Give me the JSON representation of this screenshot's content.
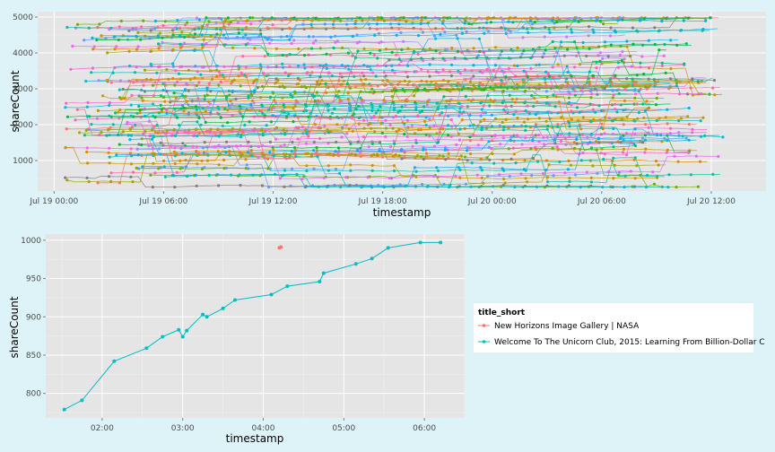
{
  "chart_data": [
    {
      "type": "line",
      "title": "",
      "xlabel": "timestamp",
      "ylabel": "shareCount",
      "x_ticks": [
        "Jul 19 00:00",
        "Jul 19 06:00",
        "Jul 19 12:00",
        "Jul 19 18:00",
        "Jul 20 00:00",
        "Jul 20 06:00",
        "Jul 20 12:00"
      ],
      "y_ticks": [
        "1000",
        "2000",
        "3000",
        "4000",
        "5000"
      ],
      "x_range_hours": [
        -0.9,
        39.0
      ],
      "ylim": [
        150,
        5150
      ],
      "grid": true,
      "series_count": 90,
      "note_series": "many overlapping article series; individual values illegible",
      "palette": [
        "#f8766d",
        "#e58700",
        "#c99800",
        "#a3a500",
        "#6bb100",
        "#00ba38",
        "#00bf7d",
        "#00c0af",
        "#00bcd8",
        "#00b0f6",
        "#619cff",
        "#b983ff",
        "#e76bf3",
        "#fd61d1",
        "#ff67a4",
        "#7f7f7f"
      ]
    },
    {
      "type": "line",
      "title": "",
      "xlabel": "timestamp",
      "ylabel": "shareCount",
      "x_ticks": [
        "02:00",
        "03:00",
        "04:00",
        "05:00",
        "06:00"
      ],
      "y_ticks": [
        "800",
        "850",
        "900",
        "950",
        "1000"
      ],
      "x_range_hours": [
        1.3,
        6.5
      ],
      "ylim": [
        768,
        1008
      ],
      "grid": true,
      "legend": {
        "title": "title_short",
        "placement": "right",
        "entries": [
          {
            "label": "New Horizons Image Gallery | NASA",
            "color": "#f8766d"
          },
          {
            "label": "Welcome To The Unicorn Club, 2015: Learning From Billion-Dollar C",
            "color": "#00bfc4"
          }
        ]
      },
      "series": [
        {
          "name": "New Horizons Image Gallery | NASA",
          "color": "#f8766d",
          "x": [
            4.2,
            4.22
          ],
          "values": [
            990,
            991
          ]
        },
        {
          "name": "Welcome To The Unicorn Club, 2015: Learning From Billion-Dollar C",
          "color": "#00bfc4",
          "x": [
            1.53,
            1.75,
            2.15,
            2.55,
            2.75,
            2.95,
            3.0,
            3.05,
            3.25,
            3.3,
            3.5,
            3.65,
            4.1,
            4.3,
            4.7,
            4.75,
            5.15,
            5.35,
            5.55,
            5.95,
            6.2
          ],
          "values": [
            779,
            791,
            842,
            859,
            874,
            883,
            874,
            882,
            903,
            900,
            911,
            922,
            929,
            940,
            946,
            957,
            969,
            976,
            990,
            997,
            997
          ]
        }
      ]
    }
  ]
}
